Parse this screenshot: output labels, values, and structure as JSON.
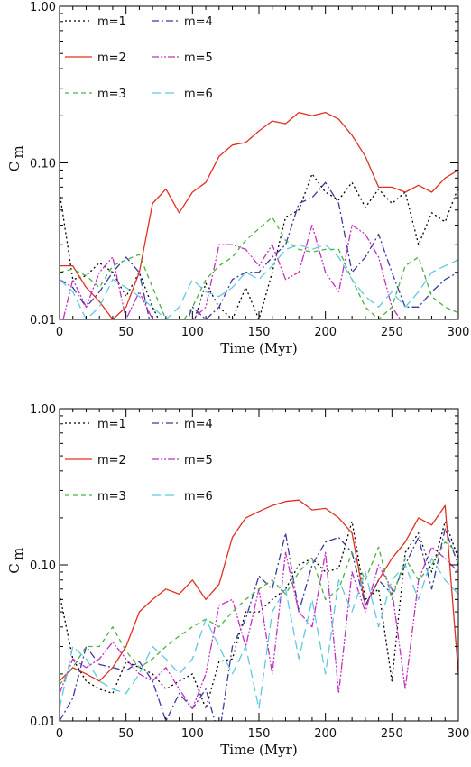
{
  "chart_data": [
    {
      "type": "line",
      "xlabel": "Time (Myr)",
      "ylabel": "C",
      "ylabel_sub": "m",
      "xlim": [
        0,
        300
      ],
      "ylim": [
        0.01,
        1.0
      ],
      "yscale": "log",
      "xticks": [
        0,
        50,
        100,
        150,
        200,
        250,
        300
      ],
      "yticks": [
        0.01,
        0.1,
        1.0
      ],
      "ytick_labels": [
        "0.01",
        "0.10",
        "1.00"
      ],
      "legend_position": "top-left",
      "x": [
        0,
        10,
        20,
        30,
        40,
        50,
        60,
        70,
        80,
        90,
        100,
        110,
        120,
        130,
        140,
        150,
        160,
        170,
        180,
        190,
        200,
        210,
        220,
        230,
        240,
        250,
        260,
        270,
        280,
        290,
        300
      ],
      "series": [
        {
          "name": "m=1",
          "color": "#000000",
          "dash": "2,3",
          "values": [
            0.065,
            0.018,
            0.019,
            0.023,
            0.02,
            0.014,
            0.02,
            0.012,
            0.008,
            0.008,
            0.009,
            0.017,
            0.012,
            0.01,
            0.016,
            0.01,
            0.02,
            0.045,
            0.05,
            0.085,
            0.065,
            0.058,
            0.075,
            0.052,
            0.068,
            0.055,
            0.065,
            0.03,
            0.048,
            0.042,
            0.07
          ]
        },
        {
          "name": "m=2",
          "color": "#e03020",
          "dash": "",
          "values": [
            0.022,
            0.022,
            0.016,
            0.013,
            0.01,
            0.012,
            0.02,
            0.055,
            0.068,
            0.048,
            0.065,
            0.075,
            0.11,
            0.13,
            0.135,
            0.16,
            0.185,
            0.178,
            0.21,
            0.2,
            0.21,
            0.19,
            0.15,
            0.11,
            0.07,
            0.07,
            0.065,
            0.072,
            0.065,
            0.08,
            0.09
          ]
        },
        {
          "name": "m=4",
          "color": "#3a3aa0",
          "dash": "8,3,2,3",
          "values": [
            0.018,
            0.016,
            0.012,
            0.015,
            0.02,
            0.025,
            0.02,
            0.008,
            0.008,
            0.007,
            0.012,
            0.01,
            0.012,
            0.018,
            0.02,
            0.02,
            0.025,
            0.03,
            0.055,
            0.06,
            0.075,
            0.055,
            0.02,
            0.025,
            0.035,
            0.02,
            0.012,
            0.012,
            0.015,
            0.018,
            0.02
          ]
        },
        {
          "name": "m=5",
          "color": "#c030c0",
          "dash": "8,2,2,2,2,2",
          "values": [
            0.008,
            0.018,
            0.012,
            0.02,
            0.025,
            0.01,
            0.015,
            0.01,
            0.008,
            0.007,
            0.01,
            0.012,
            0.03,
            0.03,
            0.028,
            0.022,
            0.03,
            0.018,
            0.02,
            0.04,
            0.02,
            0.015,
            0.04,
            0.035,
            0.025,
            0.012,
            0.009,
            0.008,
            0.008,
            0.008,
            0.009
          ]
        },
        {
          "name": "m=3",
          "color": "#4cb040",
          "dash": "5,4",
          "values": [
            0.02,
            0.021,
            0.019,
            0.016,
            0.022,
            0.024,
            0.026,
            0.016,
            0.01,
            0.009,
            0.012,
            0.018,
            0.022,
            0.025,
            0.032,
            0.038,
            0.045,
            0.032,
            0.028,
            0.027,
            0.028,
            0.028,
            0.018,
            0.012,
            0.01,
            0.012,
            0.022,
            0.025,
            0.014,
            0.012,
            0.011
          ]
        },
        {
          "name": "m=6",
          "color": "#60c8e0",
          "dash": "10,5",
          "values": [
            0.018,
            0.015,
            0.01,
            0.012,
            0.018,
            0.016,
            0.014,
            0.012,
            0.01,
            0.012,
            0.018,
            0.015,
            0.014,
            0.016,
            0.02,
            0.018,
            0.022,
            0.028,
            0.03,
            0.028,
            0.03,
            0.025,
            0.018,
            0.014,
            0.012,
            0.015,
            0.012,
            0.015,
            0.02,
            0.022,
            0.024
          ]
        }
      ]
    },
    {
      "type": "line",
      "xlabel": "Time (Myr)",
      "ylabel": "C",
      "ylabel_sub": "m",
      "xlim": [
        0,
        300
      ],
      "ylim": [
        0.01,
        1.0
      ],
      "yscale": "log",
      "xticks": [
        0,
        50,
        100,
        150,
        200,
        250,
        300
      ],
      "yticks": [
        0.01,
        0.1,
        1.0
      ],
      "ytick_labels": [
        "0.01",
        "0.10",
        "1.00"
      ],
      "legend_position": "top-left",
      "x": [
        0,
        10,
        20,
        30,
        40,
        50,
        60,
        70,
        80,
        90,
        100,
        110,
        120,
        130,
        140,
        150,
        160,
        170,
        180,
        190,
        200,
        210,
        220,
        230,
        240,
        250,
        260,
        270,
        280,
        290,
        300
      ],
      "series": [
        {
          "name": "m=1",
          "color": "#000000",
          "dash": "2,3",
          "values": [
            0.065,
            0.025,
            0.018,
            0.016,
            0.015,
            0.024,
            0.022,
            0.02,
            0.016,
            0.018,
            0.02,
            0.012,
            0.024,
            0.025,
            0.05,
            0.05,
            0.06,
            0.07,
            0.1,
            0.11,
            0.09,
            0.095,
            0.19,
            0.06,
            0.07,
            0.018,
            0.12,
            0.16,
            0.09,
            0.19,
            0.11
          ]
        },
        {
          "name": "m=2",
          "color": "#e03020",
          "dash": "",
          "values": [
            0.018,
            0.022,
            0.02,
            0.018,
            0.022,
            0.03,
            0.05,
            0.06,
            0.07,
            0.065,
            0.08,
            0.06,
            0.075,
            0.15,
            0.2,
            0.22,
            0.24,
            0.255,
            0.26,
            0.225,
            0.23,
            0.2,
            0.16,
            0.055,
            0.08,
            0.11,
            0.14,
            0.2,
            0.18,
            0.24,
            0.02
          ]
        },
        {
          "name": "m=4",
          "color": "#3a3aa0",
          "dash": "8,3,2,3",
          "values": [
            0.01,
            0.014,
            0.03,
            0.023,
            0.022,
            0.021,
            0.024,
            0.018,
            0.01,
            0.015,
            0.012,
            0.016,
            0.008,
            0.03,
            0.045,
            0.085,
            0.07,
            0.16,
            0.05,
            0.1,
            0.14,
            0.15,
            0.12,
            0.055,
            0.08,
            0.065,
            0.1,
            0.15,
            0.07,
            0.17,
            0.1
          ]
        },
        {
          "name": "m=5",
          "color": "#c030c0",
          "dash": "8,2,2,2,2,2",
          "values": [
            0.015,
            0.025,
            0.022,
            0.025,
            0.032,
            0.025,
            0.02,
            0.018,
            0.022,
            0.016,
            0.012,
            0.02,
            0.055,
            0.06,
            0.03,
            0.07,
            0.02,
            0.12,
            0.05,
            0.04,
            0.12,
            0.015,
            0.09,
            0.05,
            0.1,
            0.07,
            0.016,
            0.08,
            0.13,
            0.11,
            0.09
          ]
        },
        {
          "name": "m=3",
          "color": "#4cb040",
          "dash": "5,4",
          "values": [
            0.017,
            0.022,
            0.03,
            0.03,
            0.04,
            0.028,
            0.022,
            0.025,
            0.03,
            0.035,
            0.04,
            0.045,
            0.04,
            0.05,
            0.06,
            0.07,
            0.08,
            0.065,
            0.09,
            0.11,
            0.06,
            0.07,
            0.12,
            0.08,
            0.13,
            0.06,
            0.11,
            0.08,
            0.1,
            0.14,
            0.12
          ]
        },
        {
          "name": "m=6",
          "color": "#60c8e0",
          "dash": "10,5",
          "values": [
            0.012,
            0.03,
            0.025,
            0.018,
            0.016,
            0.015,
            0.02,
            0.03,
            0.025,
            0.02,
            0.025,
            0.045,
            0.03,
            0.02,
            0.03,
            0.012,
            0.05,
            0.07,
            0.025,
            0.06,
            0.02,
            0.08,
            0.05,
            0.09,
            0.04,
            0.08,
            0.1,
            0.06,
            0.11,
            0.08,
            0.065
          ]
        }
      ]
    }
  ]
}
